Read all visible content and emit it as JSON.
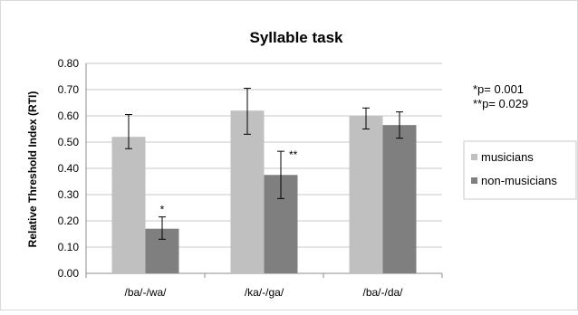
{
  "chart_data": {
    "type": "bar",
    "title": "Syllable task",
    "ylabel": "Relative Threshold Index (RTI)",
    "xlabel": "",
    "ylim": [
      0,
      0.8
    ],
    "yticks": [
      "0.00",
      "0.10",
      "0.20",
      "0.30",
      "0.40",
      "0.50",
      "0.60",
      "0.70",
      "0.80"
    ],
    "grid": true,
    "legend_position": "right",
    "categories": [
      "/ba/-/wa/",
      "/ka/-/ga/",
      "/ba/-/da/"
    ],
    "series": [
      {
        "name": "musicians",
        "color": "#c0c0c0",
        "values": [
          0.52,
          0.62,
          0.6
        ],
        "error_low": [
          0.475,
          0.53,
          0.55
        ],
        "error_high": [
          0.605,
          0.705,
          0.63
        ]
      },
      {
        "name": "non-musicians",
        "color": "#7f7f7f",
        "values": [
          0.17,
          0.375,
          0.565
        ],
        "error_low": [
          0.13,
          0.285,
          0.515
        ],
        "error_high": [
          0.215,
          0.465,
          0.615
        ]
      }
    ],
    "bar_annotations": [
      {
        "series": 1,
        "category": 0,
        "text": "*"
      },
      {
        "series": 1,
        "category": 1,
        "text": "**"
      }
    ],
    "notes": [
      "*p= 0.001",
      "**p= 0.029"
    ]
  }
}
